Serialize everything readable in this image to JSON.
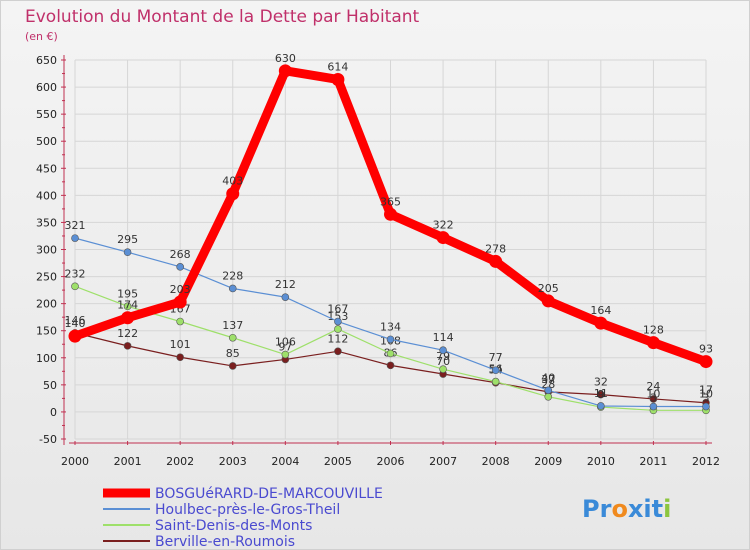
{
  "chart_data": {
    "type": "line",
    "title": "Evolution du Montant de la Dette par Habitant",
    "subtitle": "(en €)",
    "xlabel": "",
    "ylabel": "",
    "ylim": [
      -50,
      650
    ],
    "yticks": [
      -50,
      0,
      50,
      100,
      150,
      200,
      250,
      300,
      350,
      400,
      450,
      500,
      550,
      600,
      650
    ],
    "ytick_labels": [
      "-50",
      "0",
      "50",
      "100",
      "150",
      "200",
      "250",
      "300",
      "350",
      "400",
      "450",
      "500",
      "550",
      "600",
      "650"
    ],
    "grid": true,
    "legend_position": "bottom-left",
    "categories": [
      "2000",
      "2001",
      "2002",
      "2003",
      "2004",
      "2005",
      "2006",
      "2007",
      "2008",
      "2009",
      "2010",
      "2011",
      "2012"
    ],
    "series": [
      {
        "name": "BOSGUéRARD-DE-MARCOUVILLE",
        "color": "#ff0000",
        "values": [
          140,
          174,
          203,
          403,
          630,
          614,
          365,
          322,
          278,
          205,
          164,
          128,
          93
        ],
        "labels": [
          "140",
          "174",
          "203",
          "403",
          "630",
          "614",
          "365",
          "322",
          "278",
          "205",
          "164",
          "128",
          "93"
        ]
      },
      {
        "name": "Houlbec-près-le-Gros-Theil",
        "color": "#5b8fd4",
        "values": [
          321,
          295,
          268,
          228,
          212,
          167,
          134,
          114,
          77,
          40,
          11,
          10,
          10
        ],
        "labels": [
          "321",
          "295",
          "268",
          "228",
          "212",
          "167",
          "134",
          "114",
          "77",
          "40",
          "11",
          "10",
          "10"
        ]
      },
      {
        "name": "Saint-Denis-des-Monts",
        "color": "#9ee06a",
        "values": [
          232,
          195,
          167,
          137,
          106,
          153,
          108,
          79,
          56,
          28,
          9,
          3,
          3
        ],
        "labels": [
          "232",
          "195",
          "167",
          "137",
          "106",
          "153",
          "108",
          "79",
          "56",
          "28",
          "9",
          "3",
          "3"
        ]
      },
      {
        "name": "Berville-en-Roumois",
        "color": "#7a1f1f",
        "values": [
          146,
          122,
          101,
          85,
          97,
          112,
          86,
          70,
          54,
          37,
          32,
          24,
          17
        ],
        "labels": [
          "146",
          "122",
          "101",
          "85",
          "97",
          "112",
          "86",
          "70",
          "54",
          "37",
          "32",
          "24",
          "17"
        ]
      }
    ]
  },
  "brand": {
    "name": "Proxiti",
    "letters": [
      {
        "ch": "P",
        "color": "#3a8ad8"
      },
      {
        "ch": "r",
        "color": "#3a8ad8"
      },
      {
        "ch": "o",
        "color": "#f08a1e"
      },
      {
        "ch": "x",
        "color": "#3a8ad8"
      },
      {
        "ch": "i",
        "color": "#3a8ad8"
      },
      {
        "ch": "t",
        "color": "#3a8ad8"
      },
      {
        "ch": "i",
        "color": "#8cc63f"
      }
    ]
  }
}
